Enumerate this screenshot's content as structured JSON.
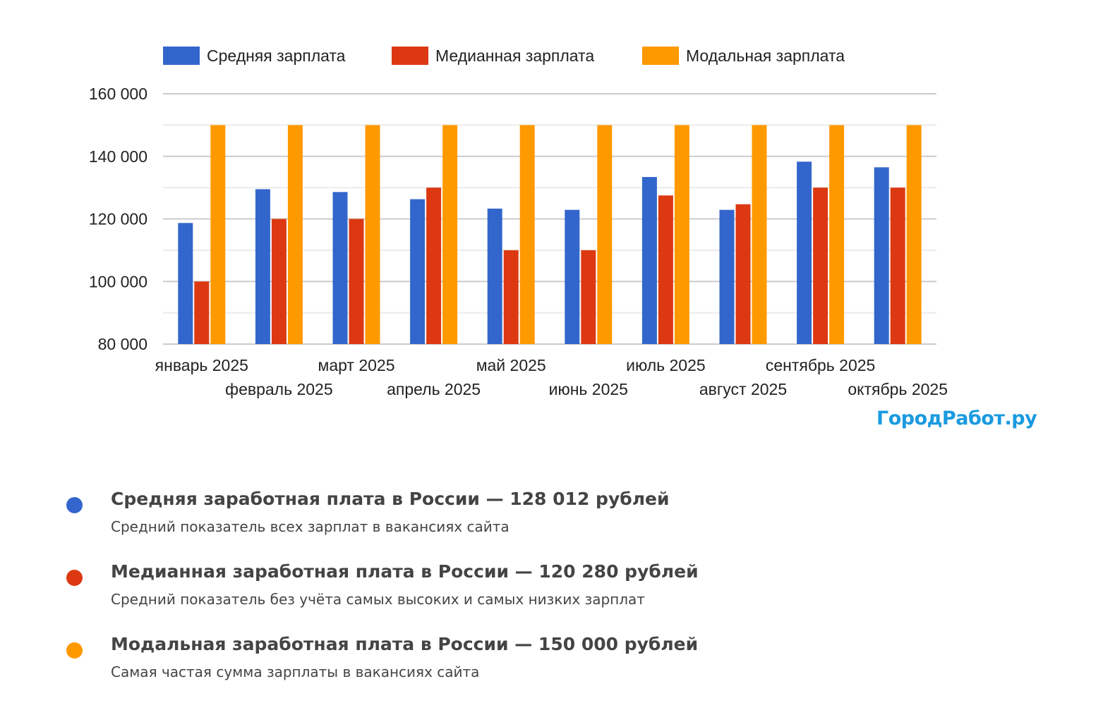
{
  "chart_data": {
    "type": "bar",
    "categories": [
      "январь 2025",
      "февраль 2025",
      "март 2025",
      "апрель 2025",
      "май 2025",
      "июнь 2025",
      "июль 2025",
      "август 2025",
      "сентябрь 2025",
      "октябрь 2025"
    ],
    "series": [
      {
        "name": "Средняя зарплата",
        "color": "#3366cc",
        "values": [
          118700,
          129500,
          128600,
          126300,
          123300,
          122900,
          133400,
          122900,
          138300,
          136500
        ]
      },
      {
        "name": "Медианная зарплата",
        "color": "#dc3912",
        "values": [
          100000,
          120000,
          120000,
          130000,
          110000,
          110000,
          127500,
          124700,
          130000,
          130000
        ]
      },
      {
        "name": "Модальная зарплата",
        "color": "#ff9900",
        "values": [
          150000,
          150000,
          150000,
          150000,
          150000,
          150000,
          150000,
          150000,
          150000,
          150000
        ]
      }
    ],
    "ylim": [
      80000,
      160000
    ],
    "yticks": [
      "80 000",
      "100 000",
      "120 000",
      "140 000",
      "160 000"
    ],
    "ytick_values": [
      80000,
      100000,
      120000,
      140000,
      160000
    ],
    "grid": true,
    "legend": "top",
    "xlabel": "",
    "ylabel": "",
    "title": ""
  },
  "logo": "ГородРабот.ру",
  "stats": [
    {
      "title": "Средняя заработная плата в России — 128 012 рублей",
      "subtitle": "Средний показатель всех зарплат в вакансиях сайта",
      "color": "#3366cc"
    },
    {
      "title": "Медианная заработная плата в России — 120 280 рублей",
      "subtitle": "Средний показатель без учёта самых высоких и самых низких зарплат",
      "color": "#dc3912"
    },
    {
      "title": "Модальная заработная плата в России — 150 000 рублей",
      "subtitle": "Самая частая сумма зарплаты в вакансиях сайта",
      "color": "#ff9900"
    }
  ]
}
